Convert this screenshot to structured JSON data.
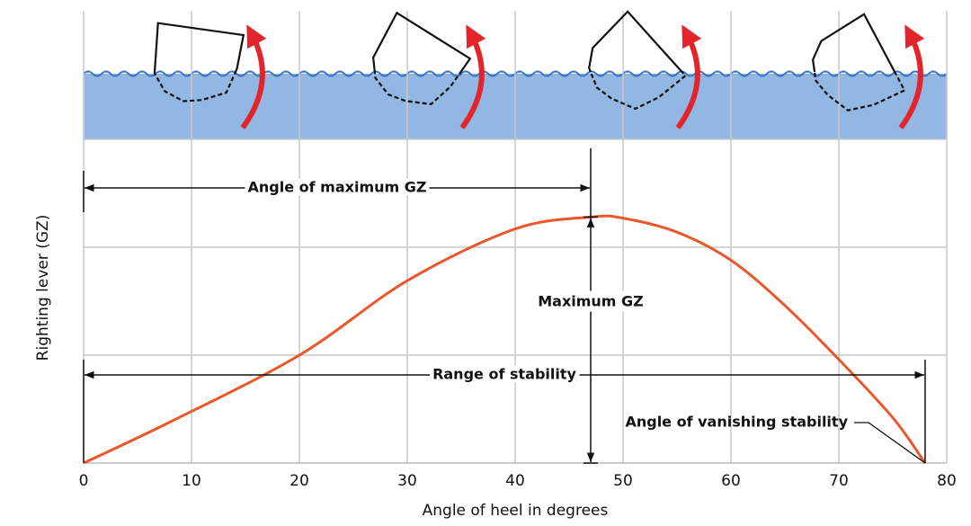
{
  "chart_data": {
    "type": "line",
    "x_label": "Angle of heel in degrees",
    "y_label": "Righting lever (GZ)",
    "x": [
      0,
      8,
      20,
      30,
      40,
      47,
      50,
      55,
      60,
      65,
      70,
      75,
      78
    ],
    "values": [
      0,
      0.38,
      1.0,
      1.69,
      2.17,
      2.28,
      2.27,
      2.14,
      1.88,
      1.46,
      0.96,
      0.42,
      0
    ],
    "color": "#e8582a",
    "xlim": [
      0,
      80
    ],
    "xticks": [
      0,
      10,
      20,
      30,
      40,
      50,
      60,
      70,
      80
    ],
    "ylim": [
      0,
      3
    ],
    "ygridlines": [
      1,
      2,
      3
    ],
    "grid": true,
    "annotations": {
      "angle_of_max_gz": {
        "text": "Angle of maximum GZ",
        "angle": 47
      },
      "max_gz": {
        "text": "Maximum GZ",
        "angle": 47,
        "value": 2.28
      },
      "range_of_stability": {
        "text": "Range of stability",
        "angle": 78
      },
      "vanishing": {
        "text": "Angle of vanishing stability",
        "angle": 78
      }
    }
  }
}
